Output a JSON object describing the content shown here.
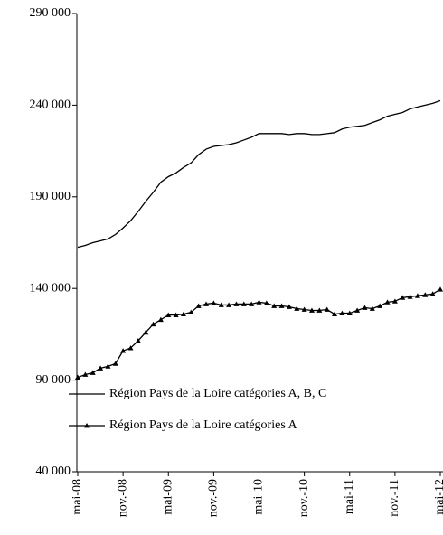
{
  "chart_data": {
    "type": "line",
    "categories": [
      "mai-08",
      null,
      null,
      null,
      null,
      null,
      "nov.-08",
      null,
      null,
      null,
      null,
      null,
      "mai-09",
      null,
      null,
      null,
      null,
      null,
      "nov.-09",
      null,
      null,
      null,
      null,
      null,
      "mai-10",
      null,
      null,
      null,
      null,
      null,
      "nov.-10",
      null,
      null,
      null,
      null,
      null,
      "mai-11",
      null,
      null,
      null,
      null,
      null,
      "nov.-11",
      null,
      null,
      null,
      null,
      null,
      "mai-12"
    ],
    "series": [
      {
        "name": "Région Pays de la Loire catégories A, B, C",
        "color": "#000000",
        "marker": "none",
        "values": [
          162500,
          163500,
          165000,
          166000,
          167000,
          169500,
          173000,
          177000,
          182000,
          187500,
          192500,
          198000,
          201000,
          203000,
          206000,
          208500,
          213000,
          216000,
          217500,
          218000,
          218500,
          219500,
          221000,
          222500,
          224500,
          224500,
          224500,
          224500,
          224000,
          224500,
          224500,
          224000,
          224000,
          224500,
          225000,
          227000,
          228000,
          228500,
          229000,
          230500,
          232000,
          234000,
          235000,
          236000,
          238000,
          239000,
          240000,
          241000,
          242500
        ]
      },
      {
        "name": "Région Pays de la Loire catégories A",
        "color": "#000000",
        "marker": "triangle",
        "values": [
          91500,
          93000,
          94000,
          96500,
          97500,
          99000,
          106000,
          107500,
          111500,
          116000,
          120500,
          123000,
          125500,
          125500,
          126000,
          127000,
          130500,
          131500,
          132000,
          131000,
          131000,
          131500,
          131500,
          131500,
          132500,
          132000,
          130500,
          130500,
          130000,
          129000,
          128500,
          128000,
          128000,
          128500,
          126000,
          126500,
          126500,
          128000,
          129500,
          129000,
          130500,
          132500,
          133000,
          135000,
          135500,
          136000,
          136500,
          137000,
          139500
        ]
      }
    ],
    "ylim": [
      40000,
      290000
    ],
    "yticks": [
      {
        "value": 40000,
        "label": "40 000"
      },
      {
        "value": 90000,
        "label": "90 000"
      },
      {
        "value": 140000,
        "label": "140 000"
      },
      {
        "value": 190000,
        "label": "190 000"
      },
      {
        "value": 240000,
        "label": "240 000"
      },
      {
        "value": 290000,
        "label": "290 000"
      }
    ],
    "grid": false,
    "legend": "lower-left"
  }
}
